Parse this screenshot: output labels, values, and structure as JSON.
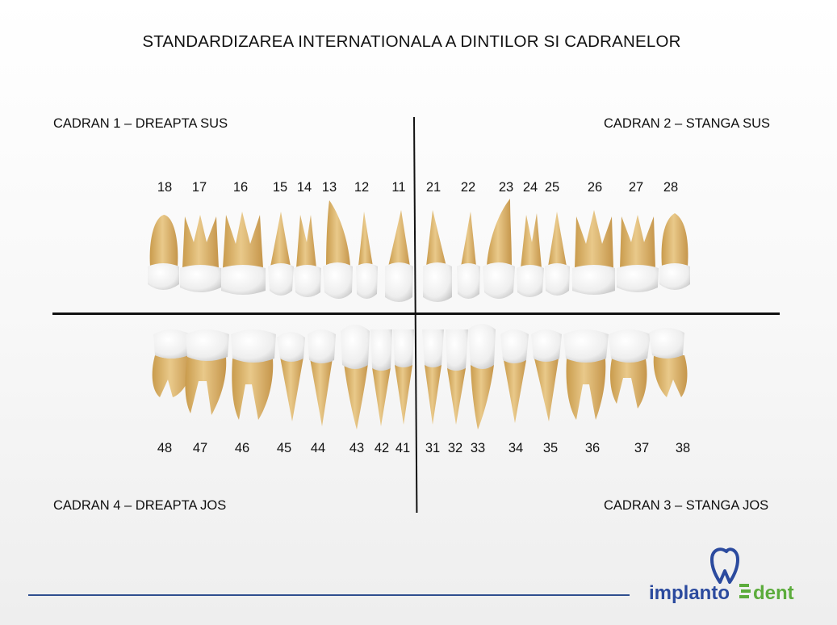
{
  "title": "STANDARDIZAREA INTERNATIONALA A DINTILOR SI CADRANELOR",
  "quadrants": {
    "q1": "CADRAN 1 – DREAPTA SUS",
    "q2": "CADRAN 2 – STANGA SUS",
    "q3": "CADRAN 3 – STANGA JOS",
    "q4": "CADRAN 4 – DREAPTA JOS"
  },
  "upper_teeth": [
    "18",
    "17",
    "16",
    "15",
    "14",
    "13",
    "12",
    "11",
    "21",
    "22",
    "23",
    "24",
    "25",
    "26",
    "27",
    "28"
  ],
  "lower_teeth": [
    "48",
    "47",
    "46",
    "45",
    "44",
    "43",
    "42",
    "41",
    "31",
    "32",
    "33",
    "34",
    "35",
    "36",
    "37",
    "38"
  ],
  "logo": {
    "text_left": "implanto",
    "text_right": "dent"
  },
  "colors": {
    "root": "#dcb56e",
    "crown": "#f1f1f1",
    "axis": "#111111",
    "footer_line": "#2f4f8f",
    "logo_blue": "#2b4a9e",
    "logo_green": "#5cac3c"
  }
}
